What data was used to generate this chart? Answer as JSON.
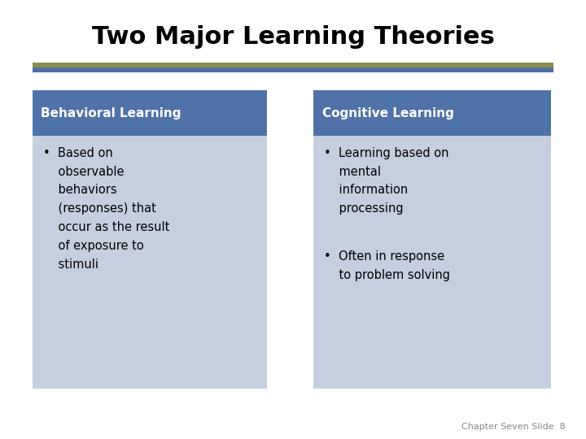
{
  "title": "Two Major Learning Theories",
  "title_fontsize": 22,
  "title_fontweight": "bold",
  "title_color": "#000000",
  "background_color": "#ffffff",
  "divider_color_top": "#8b8b4f",
  "divider_color_bottom": "#4f6fa0",
  "left_box": {
    "header_text": "Behavioral Learning",
    "header_bg": "#4f73a8",
    "header_text_color": "#ffffff",
    "body_bg": "#c5cfe0"
  },
  "right_box": {
    "header_text": "Cognitive Learning",
    "header_bg": "#4f73a8",
    "header_text_color": "#ffffff",
    "body_bg": "#c5cfe0"
  },
  "footer_text": "Chapter Seven Slide  8",
  "footer_fontsize": 8,
  "footer_color": "#888888"
}
